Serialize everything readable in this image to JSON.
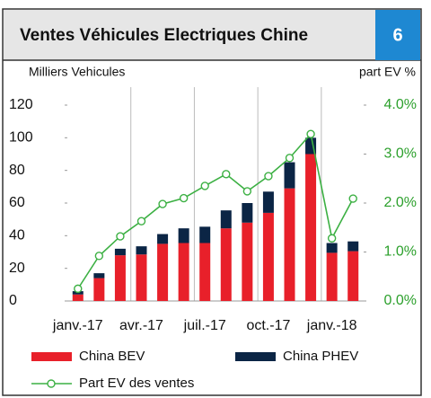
{
  "chart_data": {
    "type": "bar",
    "title": "Ventes Véhicules Electriques Chine",
    "badge": "6",
    "ylabel": "Milliers Vehicules",
    "y2label": "part EV %",
    "categories": [
      "janv.-17",
      null,
      null,
      "avr.-17",
      null,
      null,
      "juil.-17",
      null,
      null,
      "oct.-17",
      null,
      null,
      "janv.-18",
      null
    ],
    "stacked": true,
    "series": [
      {
        "name": "China BEV",
        "color": "#e8202a",
        "values": [
          4,
          14,
          28,
          28.5,
          35,
          35.5,
          35.5,
          44.5,
          48,
          54,
          69,
          90,
          29.5,
          30.5
        ]
      },
      {
        "name": "China PHEV",
        "color": "#0b2545",
        "values": [
          2,
          3,
          4,
          5,
          6,
          9,
          10,
          11,
          12,
          13,
          16,
          10,
          6,
          6
        ]
      },
      {
        "name": "Part EV des ventes",
        "color": "#3cb043",
        "type": "line",
        "axis": "y2",
        "values": [
          0.25,
          0.92,
          1.32,
          1.63,
          1.98,
          2.1,
          2.35,
          2.59,
          2.24,
          2.55,
          2.92,
          3.41,
          1.28,
          2.09
        ]
      }
    ],
    "ylim": [
      0,
      120
    ],
    "yticks": [
      0,
      20,
      40,
      60,
      80,
      100,
      120
    ],
    "y2lim": [
      0,
      4
    ],
    "y2ticks": [
      {
        "value": 0,
        "label": "0.0%"
      },
      {
        "value": 1,
        "label": "1.0%"
      },
      {
        "value": 2,
        "label": "2.0%"
      },
      {
        "value": 3,
        "label": "3.0%"
      },
      {
        "value": 4,
        "label": "4.0%"
      }
    ],
    "legend": "bottom"
  }
}
